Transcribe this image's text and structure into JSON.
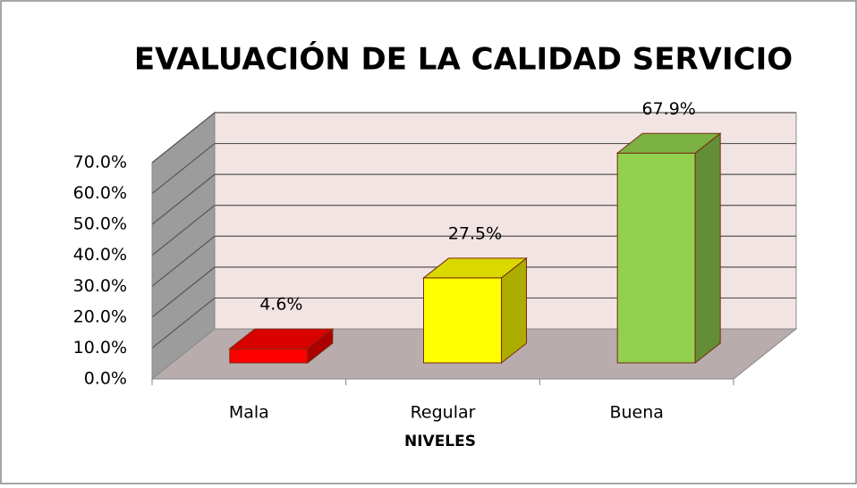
{
  "chart_data": {
    "type": "bar3d",
    "title": "EVALUACIÓN DE LA CALIDAD SERVICIO",
    "categories": [
      "Mala",
      "Regular",
      "Buena"
    ],
    "values": [
      4.6,
      27.5,
      67.9
    ],
    "value_labels": [
      "4.6%",
      "27.5%",
      "67.9%"
    ],
    "colors": [
      "#ff0000",
      "#ffff00",
      "#92d050"
    ],
    "x_label": "NIVELES",
    "ylim": [
      0,
      70
    ],
    "yticks": [
      {
        "value": 0,
        "label": "0.0%"
      },
      {
        "value": 10,
        "label": "10.0%"
      },
      {
        "value": 20,
        "label": "20.0%"
      },
      {
        "value": 30,
        "label": "30.0%"
      },
      {
        "value": 40,
        "label": "40.0%"
      },
      {
        "value": 50,
        "label": "50.0%"
      },
      {
        "value": 60,
        "label": "60.0%"
      },
      {
        "value": 70,
        "label": "70.0%"
      }
    ],
    "grid": true
  }
}
